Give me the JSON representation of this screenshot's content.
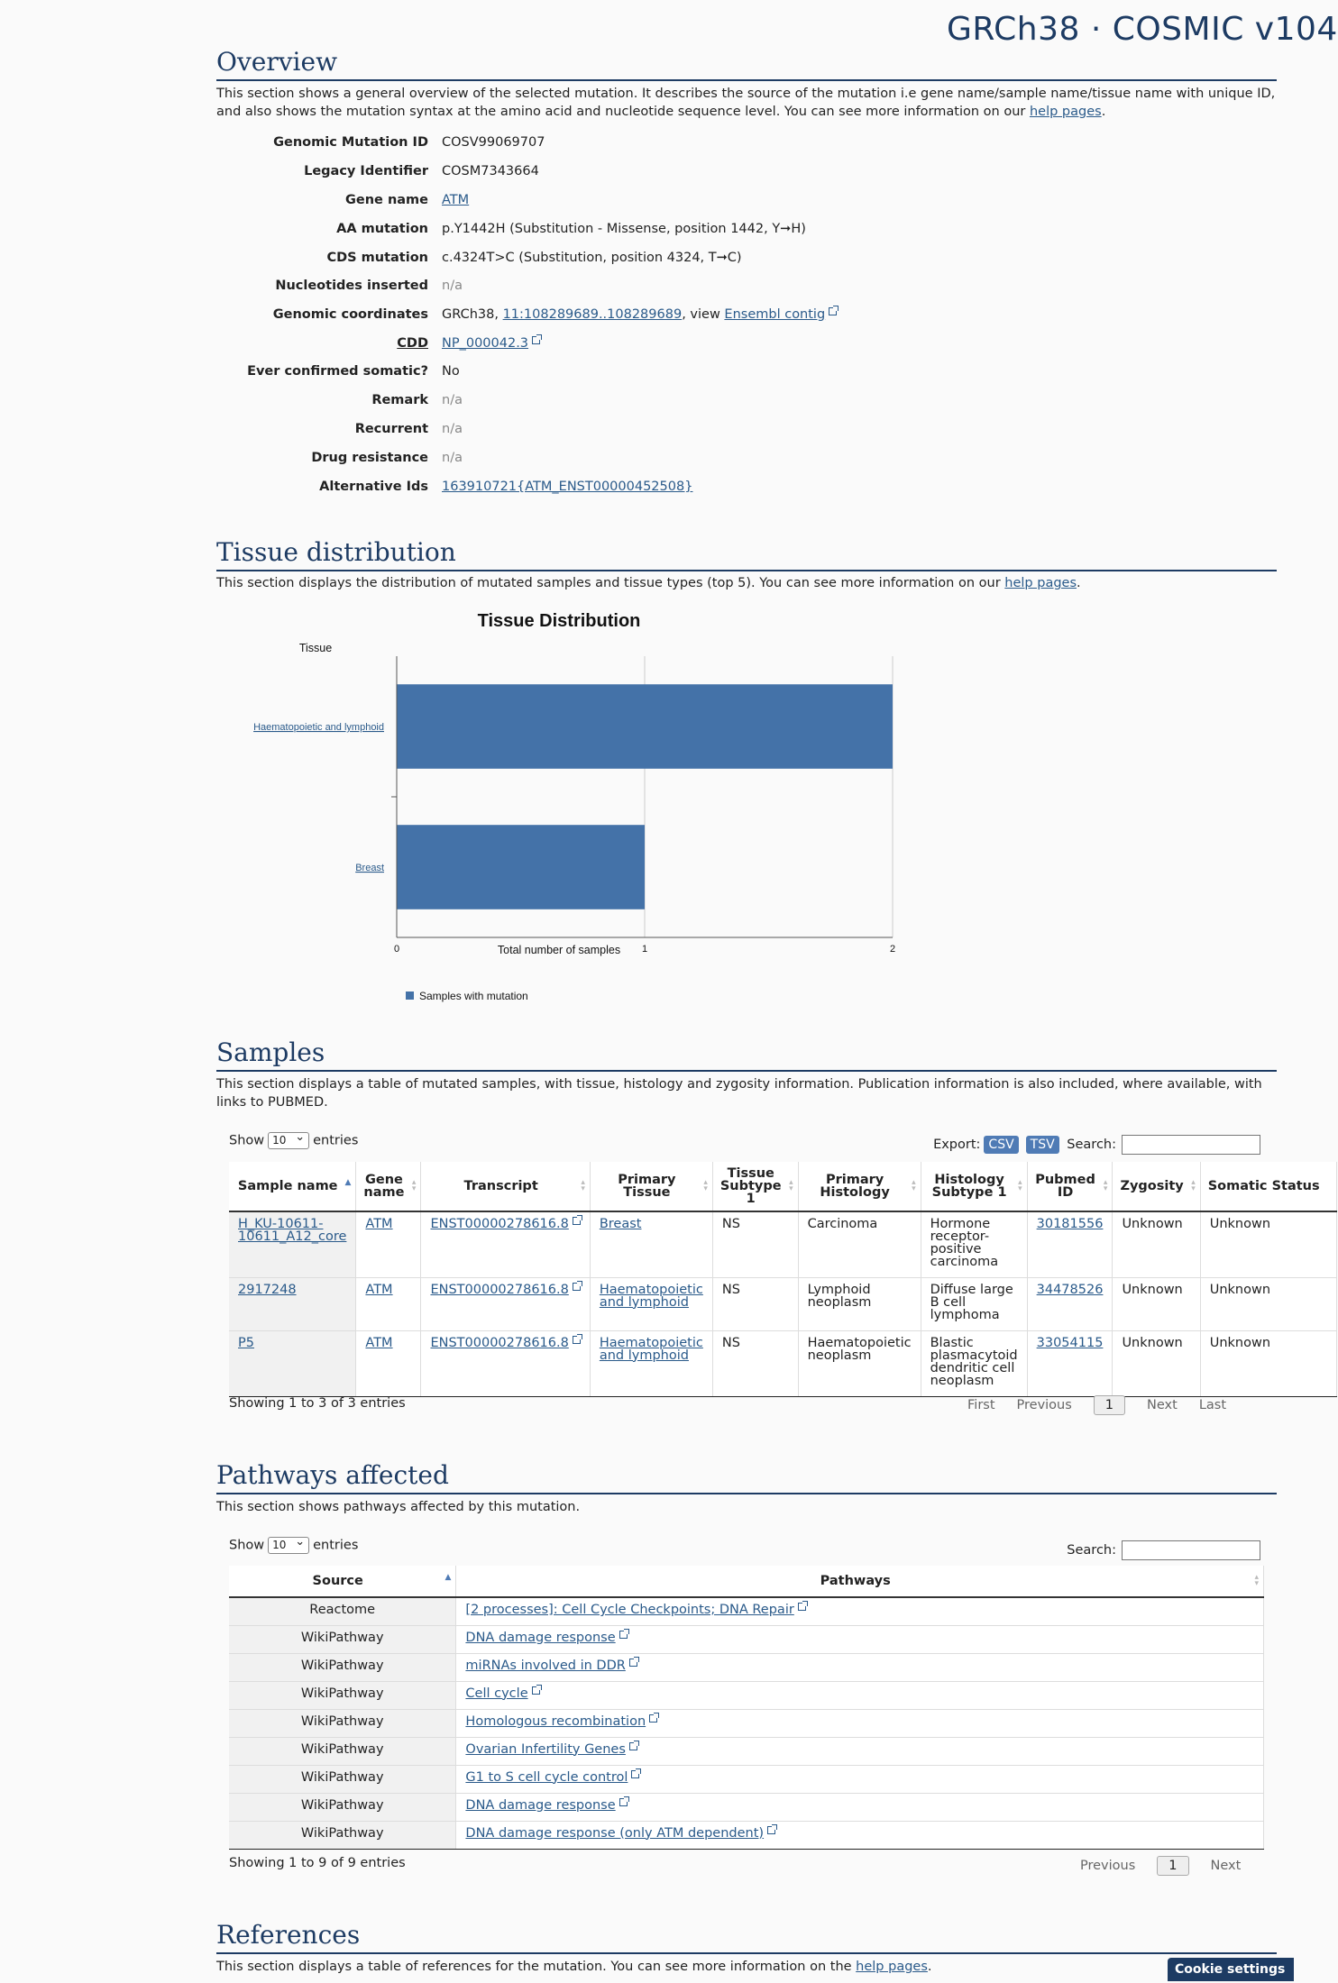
{
  "brand": "GRCh38 · COSMIC v104",
  "overview": {
    "title": "Overview",
    "desc_before": "This section shows a general overview of the selected mutation. It describes the source of the mutation i.e gene name/sample name/tissue name with unique ID, and also shows the mutation syntax at the amino acid and nucleotide sequence level. You can see more information on our ",
    "desc_link": "help pages",
    "desc_after": ".",
    "rows": [
      {
        "label": "Genomic Mutation ID",
        "value": "COSV99069707"
      },
      {
        "label": "Legacy Identifier",
        "value": "COSM7343664"
      },
      {
        "label": "Gene name",
        "value": "ATM"
      },
      {
        "label": "AA mutation",
        "value": "p.Y1442H (Substitution - Missense, position 1442, Y➞H)"
      },
      {
        "label": "CDS mutation",
        "value": "c.4324T>C (Substitution, position 4324, T➞C)"
      },
      {
        "label": "Nucleotides inserted",
        "value": "n/a"
      },
      {
        "label": "Genomic coordinates",
        "prefix": "GRCh38, ",
        "link1": "11:108289689..108289689",
        "mid": ", view ",
        "link2": "Ensembl contig"
      },
      {
        "label": "CDD",
        "value": "NP_000042.3"
      },
      {
        "label": "Ever confirmed somatic?",
        "value": "No"
      },
      {
        "label": "Remark",
        "value": "n/a"
      },
      {
        "label": "Recurrent",
        "value": "n/a"
      },
      {
        "label": "Drug resistance",
        "value": "n/a"
      },
      {
        "label": "Alternative Ids",
        "value": "163910721{ATM_ENST00000452508}"
      }
    ]
  },
  "tissue": {
    "title": "Tissue distribution",
    "desc_before": "This section displays the distribution of mutated samples and tissue types (top 5). You can see more information on our ",
    "desc_link": "help pages",
    "desc_after": "."
  },
  "chart_data": {
    "type": "bar",
    "orientation": "horizontal",
    "title": "Tissue Distribution",
    "ylabel": "Tissue",
    "xlabel": "Total number of samples",
    "categories": [
      "Haematopoietic and lymphoid",
      "Breast"
    ],
    "series": [
      {
        "name": "Samples with mutation",
        "values": [
          2,
          1
        ]
      }
    ],
    "xlim": [
      0,
      2
    ],
    "xticks": [
      "0",
      "1",
      "2"
    ],
    "grid": true,
    "legend": "bottom-left",
    "color": "#4472a8"
  },
  "samples": {
    "title": "Samples",
    "desc": "This section displays a table of mutated samples, with tissue, histology and zygosity information. Publication information is also included, where available, with links to PUBMED.",
    "show_label": "Show",
    "show_value": "10",
    "entries_label": "entries",
    "export_label": "Export:",
    "csv": "CSV",
    "tsv": "TSV",
    "search_label": "Search:",
    "headers": [
      "Sample name",
      "Gene name",
      "Transcript",
      "Primary Tissue",
      "Tissue Subtype 1",
      "Primary Histology",
      "Histology Subtype 1",
      "Pubmed ID",
      "Zygosity",
      "Somatic Status"
    ],
    "rows": [
      [
        "H_KU-10611-10611_A12_core",
        "ATM",
        "ENST00000278616.8",
        "Breast",
        "NS",
        "Carcinoma",
        "Hormone receptor-positive carcinoma",
        "30181556",
        "Unknown",
        "Unknown"
      ],
      [
        "2917248",
        "ATM",
        "ENST00000278616.8",
        "Haematopoietic and lymphoid",
        "NS",
        "Lymphoid neoplasm",
        "Diffuse large B cell lymphoma",
        "34478526",
        "Unknown",
        "Unknown"
      ],
      [
        "P5",
        "ATM",
        "ENST00000278616.8",
        "Haematopoietic and lymphoid",
        "NS",
        "Haematopoietic neoplasm",
        "Blastic plasmacytoid dendritic cell neoplasm",
        "33054115",
        "Unknown",
        "Unknown"
      ]
    ],
    "info": "Showing 1 to 3 of 3 entries",
    "pager": {
      "first": "First",
      "previous": "Previous",
      "page": "1",
      "next": "Next",
      "last": "Last"
    }
  },
  "pathways": {
    "title": "Pathways affected",
    "desc": "This section shows pathways affected by this mutation.",
    "show_label": "Show",
    "show_value": "10",
    "entries_label": "entries",
    "search_label": "Search:",
    "headers": [
      "Source",
      "Pathways"
    ],
    "rows": [
      [
        "Reactome",
        "[2 processes]: Cell Cycle Checkpoints; DNA Repair"
      ],
      [
        "WikiPathway",
        "DNA damage response"
      ],
      [
        "WikiPathway",
        "miRNAs involved in DDR"
      ],
      [
        "WikiPathway",
        "Cell cycle"
      ],
      [
        "WikiPathway",
        "Homologous recombination"
      ],
      [
        "WikiPathway",
        "Ovarian Infertility Genes"
      ],
      [
        "WikiPathway",
        "G1 to S cell cycle control"
      ],
      [
        "WikiPathway",
        "DNA damage response"
      ],
      [
        "WikiPathway",
        "DNA damage response (only ATM dependent)"
      ]
    ],
    "info": "Showing 1 to 9 of 9 entries",
    "pager": {
      "previous": "Previous",
      "page": "1",
      "next": "Next"
    }
  },
  "references": {
    "title": "References",
    "desc_before": "This section displays a table of references for the mutation. You can see more information on the ",
    "desc_link": "help pages",
    "desc_after": "."
  },
  "cookie_settings": "Cookie settings"
}
